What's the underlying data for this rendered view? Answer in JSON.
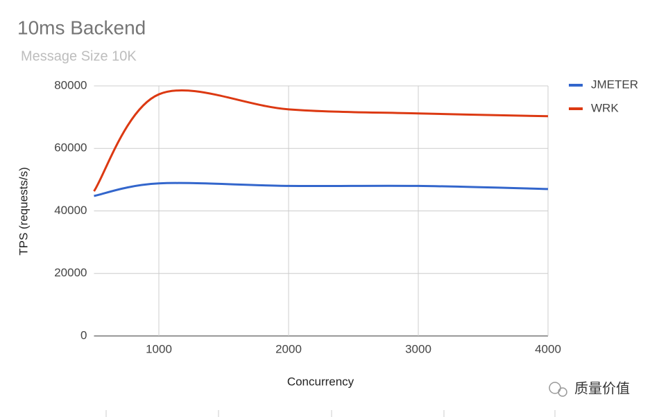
{
  "chart_data": {
    "type": "line",
    "title": "10ms Backend",
    "subtitle": "Message Size 10K",
    "x_label": "Concurrency",
    "y_label": "TPS (requests/s)",
    "x": [
      500,
      1000,
      2000,
      3000,
      4000
    ],
    "series": [
      {
        "name": "JMETER",
        "color": "#3366cc",
        "values": [
          44800,
          48800,
          48000,
          48000,
          47000
        ]
      },
      {
        "name": "WRK",
        "color": "#dc3912",
        "values": [
          46300,
          77300,
          72500,
          71200,
          70300
        ]
      }
    ],
    "xlim": [
      500,
      4000
    ],
    "xticks": [
      1000,
      2000,
      3000,
      4000
    ],
    "ylim": [
      0,
      80000
    ],
    "yticks": [
      0,
      20000,
      40000,
      60000,
      80000
    ],
    "grid": true,
    "smooth": true,
    "legend": "right"
  },
  "watermark": "质量价值"
}
